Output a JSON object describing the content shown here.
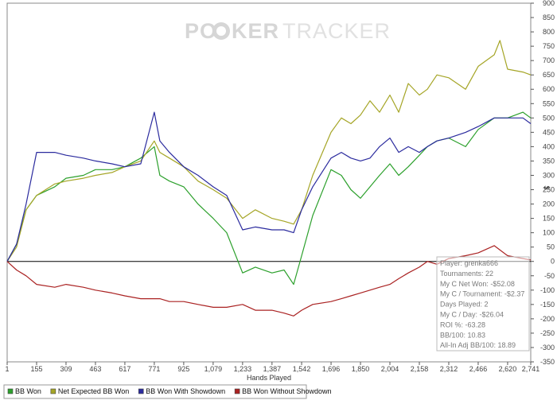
{
  "watermark": {
    "part1": "PO",
    "part2": "KER",
    "part3": "TRACKER"
  },
  "chart_data": {
    "type": "line",
    "xlabel": "Hands Played",
    "ylabel": "$",
    "xlim": [
      1,
      2741
    ],
    "ylim": [
      -350,
      900
    ],
    "x_ticks": [
      1,
      155,
      309,
      463,
      617,
      771,
      925,
      1079,
      1233,
      1387,
      1542,
      1696,
      1850,
      2004,
      2158,
      2312,
      2466,
      2620,
      2741
    ],
    "x_tick_labels": [
      "1",
      "155",
      "309",
      "463",
      "617",
      "771",
      "925",
      "1,079",
      "1,233",
      "1,387",
      "1,542",
      "1,696",
      "1,850",
      "2,004",
      "2,158",
      "2,312",
      "2,466",
      "2,620",
      "2,741"
    ],
    "y_ticks": [
      900,
      850,
      800,
      750,
      700,
      650,
      600,
      550,
      500,
      450,
      400,
      350,
      300,
      250,
      200,
      150,
      100,
      50,
      0,
      -50,
      -100,
      -150,
      -200,
      -250,
      -300,
      -350
    ],
    "grid": false,
    "legend_position": "bottom",
    "series": [
      {
        "name": "BB Won",
        "color": "#2ca02c",
        "x": [
          1,
          50,
          100,
          155,
          250,
          309,
          400,
          463,
          550,
          617,
          700,
          771,
          800,
          850,
          925,
          1000,
          1079,
          1150,
          1233,
          1300,
          1387,
          1450,
          1500,
          1542,
          1600,
          1696,
          1750,
          1800,
          1850,
          1900,
          1950,
          2004,
          2050,
          2100,
          2158,
          2200,
          2250,
          2312,
          2400,
          2466,
          2550,
          2620,
          2700,
          2741
        ],
        "y": [
          0,
          60,
          180,
          230,
          260,
          290,
          300,
          320,
          320,
          330,
          360,
          400,
          300,
          280,
          260,
          200,
          150,
          100,
          -40,
          -20,
          -40,
          -30,
          -80,
          20,
          160,
          320,
          300,
          250,
          220,
          260,
          300,
          340,
          300,
          330,
          370,
          400,
          420,
          430,
          400,
          460,
          500,
          500,
          520,
          500
        ]
      },
      {
        "name": "Net Expected BB Won",
        "color": "#a5a526",
        "x": [
          1,
          50,
          100,
          155,
          250,
          309,
          400,
          463,
          550,
          617,
          700,
          771,
          800,
          850,
          925,
          1000,
          1079,
          1150,
          1233,
          1300,
          1387,
          1450,
          1500,
          1542,
          1600,
          1696,
          1750,
          1800,
          1850,
          1900,
          1950,
          2004,
          2050,
          2100,
          2158,
          2200,
          2250,
          2312,
          2400,
          2466,
          2550,
          2580,
          2620,
          2700,
          2741
        ],
        "y": [
          0,
          50,
          180,
          230,
          270,
          280,
          290,
          300,
          310,
          330,
          350,
          420,
          380,
          360,
          330,
          280,
          250,
          220,
          150,
          180,
          150,
          140,
          130,
          180,
          300,
          450,
          500,
          480,
          510,
          560,
          520,
          580,
          520,
          620,
          580,
          600,
          650,
          640,
          600,
          680,
          720,
          770,
          670,
          660,
          650
        ]
      },
      {
        "name": "BB Won With Showdown",
        "color": "#2b2b9e",
        "x": [
          1,
          50,
          100,
          155,
          250,
          309,
          400,
          463,
          550,
          617,
          700,
          771,
          800,
          850,
          925,
          1000,
          1079,
          1150,
          1233,
          1300,
          1387,
          1450,
          1500,
          1542,
          1600,
          1696,
          1750,
          1800,
          1850,
          1900,
          1950,
          2004,
          2050,
          2100,
          2158,
          2200,
          2250,
          2312,
          2400,
          2466,
          2550,
          2620,
          2700,
          2741
        ],
        "y": [
          0,
          60,
          200,
          380,
          380,
          370,
          360,
          350,
          340,
          330,
          340,
          520,
          420,
          380,
          330,
          300,
          260,
          230,
          110,
          120,
          110,
          110,
          100,
          180,
          260,
          360,
          380,
          360,
          350,
          360,
          400,
          430,
          380,
          400,
          380,
          400,
          420,
          430,
          450,
          470,
          500,
          500,
          500,
          480
        ]
      },
      {
        "name": "BB Won Without Showdown",
        "color": "#aa2222",
        "x": [
          1,
          50,
          100,
          155,
          250,
          309,
          400,
          463,
          550,
          617,
          700,
          771,
          800,
          850,
          925,
          1000,
          1079,
          1150,
          1233,
          1300,
          1387,
          1450,
          1500,
          1542,
          1600,
          1696,
          1750,
          1800,
          1850,
          1900,
          1950,
          2004,
          2050,
          2100,
          2158,
          2200,
          2250,
          2312,
          2400,
          2466,
          2550,
          2620,
          2700,
          2741
        ],
        "y": [
          0,
          -30,
          -50,
          -80,
          -90,
          -80,
          -90,
          -100,
          -110,
          -120,
          -130,
          -130,
          -130,
          -140,
          -140,
          -150,
          -160,
          -160,
          -150,
          -170,
          -170,
          -180,
          -190,
          -170,
          -150,
          -140,
          -130,
          -120,
          -110,
          -100,
          -90,
          -80,
          -60,
          -40,
          -20,
          0,
          -10,
          10,
          20,
          30,
          55,
          20,
          10,
          5
        ]
      }
    ],
    "legend": [
      "BB Won",
      "Net Expected BB Won",
      "BB Won With Showdown",
      "BB Won Without Showdown"
    ]
  },
  "stats_box": {
    "lines": [
      "Player: grenka666",
      "Tournaments: 22",
      "My C Net Won: -$52.08",
      "My C / Tournament: -$2.37",
      "Days Played: 2",
      "My C / Day: -$26.04",
      "ROI %: -63.28",
      "BB/100: 10.83",
      "All-In Adj BB/100: 18.89"
    ]
  }
}
